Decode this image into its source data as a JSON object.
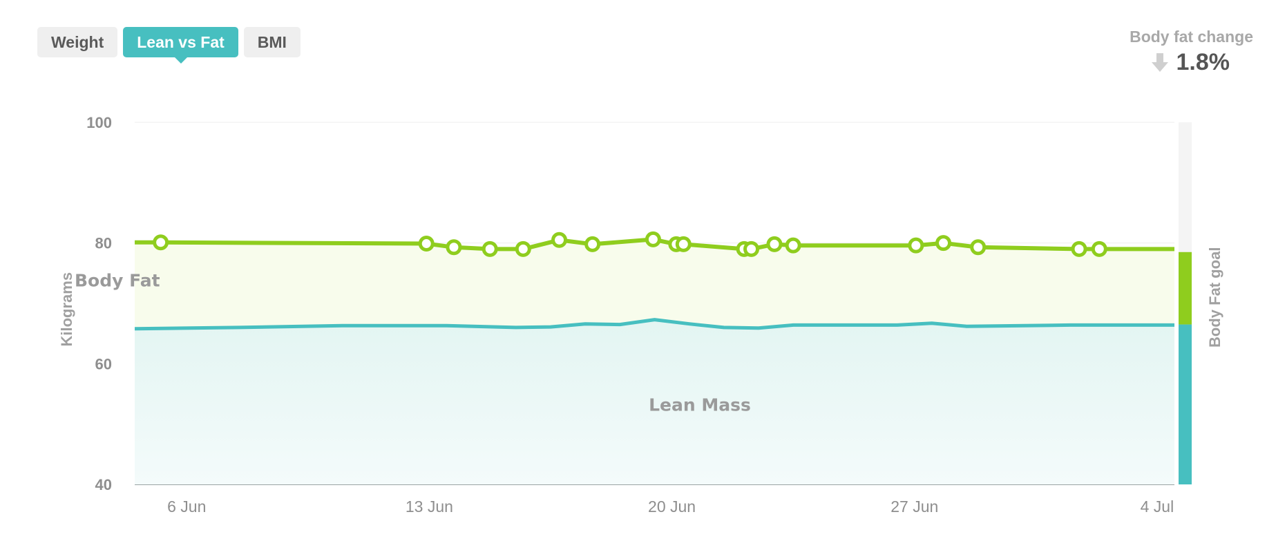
{
  "tabs": [
    {
      "label": "Weight",
      "active": false
    },
    {
      "label": "Lean vs Fat",
      "active": true
    },
    {
      "label": "BMI",
      "active": false
    }
  ],
  "summary": {
    "title": "Body fat change",
    "value": "1.8%",
    "direction_icon": "arrow-down-icon"
  },
  "colors": {
    "fat": "#8fcd1e",
    "lean": "#47bfc0",
    "tab_active": "#47bfc0",
    "goal_track": "#f4f4f4"
  },
  "chart_data": {
    "type": "area",
    "ylabel": "Kilograms",
    "ylim": [
      40,
      100
    ],
    "yticks": [
      100,
      80,
      60,
      40
    ],
    "xlim": [
      "2025-06-05",
      "2025-07-05"
    ],
    "xticks": [
      {
        "date": "2025-06-06",
        "label": "6 Jun"
      },
      {
        "date": "2025-06-13",
        "label": "13 Jun"
      },
      {
        "date": "2025-06-20",
        "label": "20 Jun"
      },
      {
        "date": "2025-06-27",
        "label": "27 Jun"
      },
      {
        "date": "2025-07-04",
        "label": "4 Jul"
      }
    ],
    "area_labels": {
      "fat": "Body Fat",
      "lean": "Lean Mass"
    },
    "series": [
      {
        "name": "Body Fat",
        "x": [
          "2025-06-05 18:00",
          "2025-06-13 10:00",
          "2025-06-14 05:00",
          "2025-06-15 06:00",
          "2025-06-16 05:00",
          "2025-06-17 06:00",
          "2025-06-18 05:00",
          "2025-06-19 23:00",
          "2025-06-20 15:00",
          "2025-06-20 20:00",
          "2025-06-22 14:00",
          "2025-06-22 19:00",
          "2025-06-23 11:00",
          "2025-06-24 00:00",
          "2025-06-27 13:00",
          "2025-06-28 08:00",
          "2025-06-29 08:00",
          "2025-07-02 06:00",
          "2025-07-02 20:00",
          "2025-07-04 12:00"
        ],
        "values": [
          80.1,
          79.9,
          79.3,
          79.0,
          79.0,
          80.5,
          79.8,
          80.6,
          79.8,
          79.8,
          79.0,
          79.0,
          79.8,
          79.6,
          79.6,
          80.0,
          79.3,
          79.0,
          79.0,
          79.0
        ],
        "markers": [
          true,
          true,
          true,
          true,
          true,
          true,
          true,
          true,
          true,
          true,
          true,
          true,
          true,
          true,
          true,
          true,
          true,
          true,
          true,
          false
        ]
      },
      {
        "name": "Lean Mass",
        "x": [
          "2025-06-05",
          "2025-06-08",
          "2025-06-11",
          "2025-06-14",
          "2025-06-16",
          "2025-06-17",
          "2025-06-18",
          "2025-06-19",
          "2025-06-20",
          "2025-06-21",
          "2025-06-22",
          "2025-06-23",
          "2025-06-24",
          "2025-06-27",
          "2025-06-28",
          "2025-06-29",
          "2025-07-02",
          "2025-07-05"
        ],
        "values": [
          65.8,
          66.0,
          66.3,
          66.3,
          66.0,
          66.1,
          66.6,
          66.5,
          67.3,
          66.6,
          66.0,
          65.9,
          66.4,
          66.4,
          66.7,
          66.2,
          66.4,
          66.4
        ]
      }
    ],
    "goal_bar": {
      "label": "Body Fat goal",
      "lean_top": 66.5,
      "fat_top": 78.5
    }
  }
}
